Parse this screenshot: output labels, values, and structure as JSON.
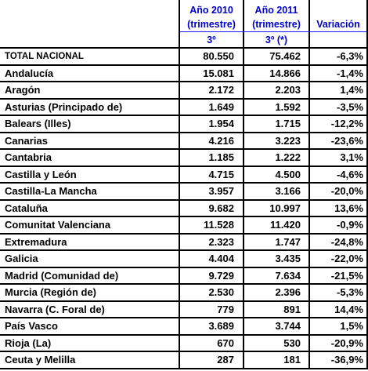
{
  "header": {
    "col1": {
      "line1": "Año 2010",
      "line2": "(trimestre)",
      "line3": "3º"
    },
    "col2": {
      "line1": "Año 2011",
      "line2": "(trimestre)",
      "line3": "3º (*)"
    },
    "col3": "Variación"
  },
  "rows": [
    {
      "name": "TOTAL NACIONAL",
      "v2010": "80.550",
      "v2011": "75.462",
      "var": "-6,3%"
    },
    {
      "name": "Andalucía",
      "v2010": "15.081",
      "v2011": "14.866",
      "var": "-1,4%"
    },
    {
      "name": "Aragón",
      "v2010": "2.172",
      "v2011": "2.203",
      "var": "1,4%"
    },
    {
      "name": "Asturias (Principado de)",
      "v2010": "1.649",
      "v2011": "1.592",
      "var": "-3,5%"
    },
    {
      "name": "Balears (Illes)",
      "v2010": "1.954",
      "v2011": "1.715",
      "var": "-12,2%"
    },
    {
      "name": "Canarias",
      "v2010": "4.216",
      "v2011": "3.223",
      "var": "-23,6%"
    },
    {
      "name": "Cantabria",
      "v2010": "1.185",
      "v2011": "1.222",
      "var": "3,1%"
    },
    {
      "name": "Castilla y León",
      "v2010": "4.715",
      "v2011": "4.500",
      "var": "-4,6%"
    },
    {
      "name": "Castilla-La Mancha",
      "v2010": "3.957",
      "v2011": "3.166",
      "var": "-20,0%"
    },
    {
      "name": "Cataluña",
      "v2010": "9.682",
      "v2011": "10.997",
      "var": "13,6%"
    },
    {
      "name": "Comunitat Valenciana",
      "v2010": "11.528",
      "v2011": "11.420",
      "var": "-0,9%"
    },
    {
      "name": "Extremadura",
      "v2010": "2.323",
      "v2011": "1.747",
      "var": "-24,8%"
    },
    {
      "name": "Galicia",
      "v2010": "4.404",
      "v2011": "3.435",
      "var": "-22,0%"
    },
    {
      "name": "Madrid (Comunidad de)",
      "v2010": "9.729",
      "v2011": "7.634",
      "var": "-21,5%"
    },
    {
      "name": "Murcia (Región de)",
      "v2010": "2.530",
      "v2011": "2.396",
      "var": "-5,3%"
    },
    {
      "name": "Navarra (C. Foral de)",
      "v2010": "779",
      "v2011": "891",
      "var": "14,4%"
    },
    {
      "name": "País Vasco",
      "v2010": "3.689",
      "v2011": "3.744",
      "var": "1,5%"
    },
    {
      "name": "Rioja (La)",
      "v2010": "670",
      "v2011": "530",
      "var": "-20,9%"
    },
    {
      "name": "Ceuta y Melilla",
      "v2010": "287",
      "v2011": "181",
      "var": "-36,9%"
    }
  ]
}
